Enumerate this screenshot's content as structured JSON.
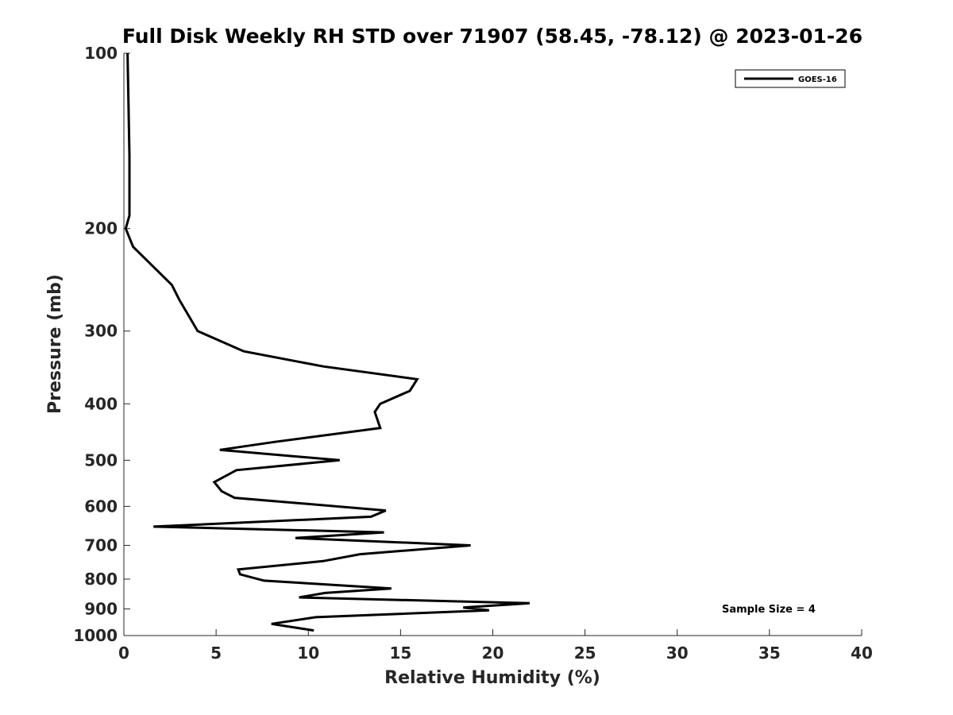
{
  "chart_data": {
    "type": "line",
    "title": "Full Disk Weekly RH STD over 71907 (58.45, -78.12) @ 2023-01-26",
    "xlabel": "Relative Humidity (%)",
    "ylabel": "Pressure (mb)",
    "xlim": [
      0,
      40
    ],
    "ylim": [
      100,
      1000
    ],
    "y_scale": "log",
    "y_reversed": true,
    "x_ticks": [
      0,
      5,
      10,
      15,
      20,
      25,
      30,
      35,
      40
    ],
    "y_ticks": [
      100,
      200,
      300,
      400,
      500,
      600,
      700,
      800,
      900,
      1000
    ],
    "grid": false,
    "legend_position": "top-right",
    "annotation": "Sample Size = 4",
    "series": [
      {
        "name": "GOES-16",
        "color": "#000000",
        "points": [
          [
            0.2,
            100
          ],
          [
            0.3,
            150
          ],
          [
            0.3,
            190
          ],
          [
            0.1,
            200
          ],
          [
            0.5,
            215
          ],
          [
            2.6,
            250
          ],
          [
            3.0,
            265
          ],
          [
            4.0,
            300
          ],
          [
            6.5,
            325
          ],
          [
            10.8,
            345
          ],
          [
            15.9,
            363
          ],
          [
            15.5,
            380
          ],
          [
            13.9,
            400
          ],
          [
            13.6,
            413
          ],
          [
            13.9,
            440
          ],
          [
            8.2,
            465
          ],
          [
            5.2,
            480
          ],
          [
            11.7,
            500
          ],
          [
            6.1,
            520
          ],
          [
            4.9,
            545
          ],
          [
            5.3,
            565
          ],
          [
            6.0,
            580
          ],
          [
            14.2,
            610
          ],
          [
            13.4,
            625
          ],
          [
            1.6,
            650
          ],
          [
            14.1,
            665
          ],
          [
            9.3,
            680
          ],
          [
            18.8,
            700
          ],
          [
            12.8,
            725
          ],
          [
            10.8,
            745
          ],
          [
            6.2,
            770
          ],
          [
            6.3,
            785
          ],
          [
            7.6,
            805
          ],
          [
            14.5,
            830
          ],
          [
            10.9,
            845
          ],
          [
            9.5,
            860
          ],
          [
            22.0,
            880
          ],
          [
            18.4,
            895
          ],
          [
            19.8,
            905
          ],
          [
            10.4,
            930
          ],
          [
            8.0,
            955
          ],
          [
            10.3,
            980
          ]
        ]
      }
    ]
  }
}
